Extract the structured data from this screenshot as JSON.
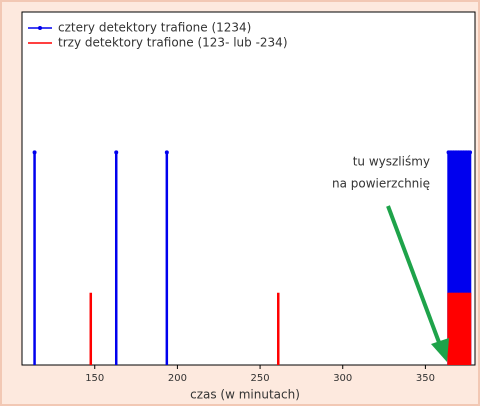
{
  "chart_data": {
    "type": "stem",
    "series": [
      {
        "name": "cztery detektory trafione (1234)",
        "color": "#0000ee",
        "x": [
          113.6,
          163,
          193.6,
          364,
          365,
          366,
          367,
          368,
          369,
          370,
          371,
          372,
          373,
          374,
          375,
          376,
          377
        ],
        "values": [
          1,
          1,
          1,
          1,
          1,
          1,
          1,
          1,
          1,
          1,
          1,
          1,
          1,
          1,
          1,
          1,
          1
        ]
      },
      {
        "name": "trzy detektory trafione (123- lub -234)",
        "color": "#ff0000",
        "x": [
          147.6,
          261,
          364,
          365,
          366,
          367,
          368,
          369,
          370,
          371,
          372,
          373,
          374,
          375,
          376,
          377
        ],
        "values": [
          0.34,
          0.34,
          0.34,
          0.34,
          0.34,
          0.34,
          0.34,
          0.34,
          0.34,
          0.34,
          0.34,
          0.34,
          0.34,
          0.34,
          0.34,
          0.34
        ]
      }
    ],
    "xlabel": "czas   (w minutach)",
    "xlim": [
      106,
      380
    ],
    "xticks": [
      150,
      200,
      250,
      300,
      350
    ],
    "ylim": [
      0,
      1.66
    ],
    "annotation": [
      "tu wyszliśmy",
      "na powierzchnię"
    ],
    "annotation_color": "#1ea34a",
    "legend": "upper-left"
  }
}
